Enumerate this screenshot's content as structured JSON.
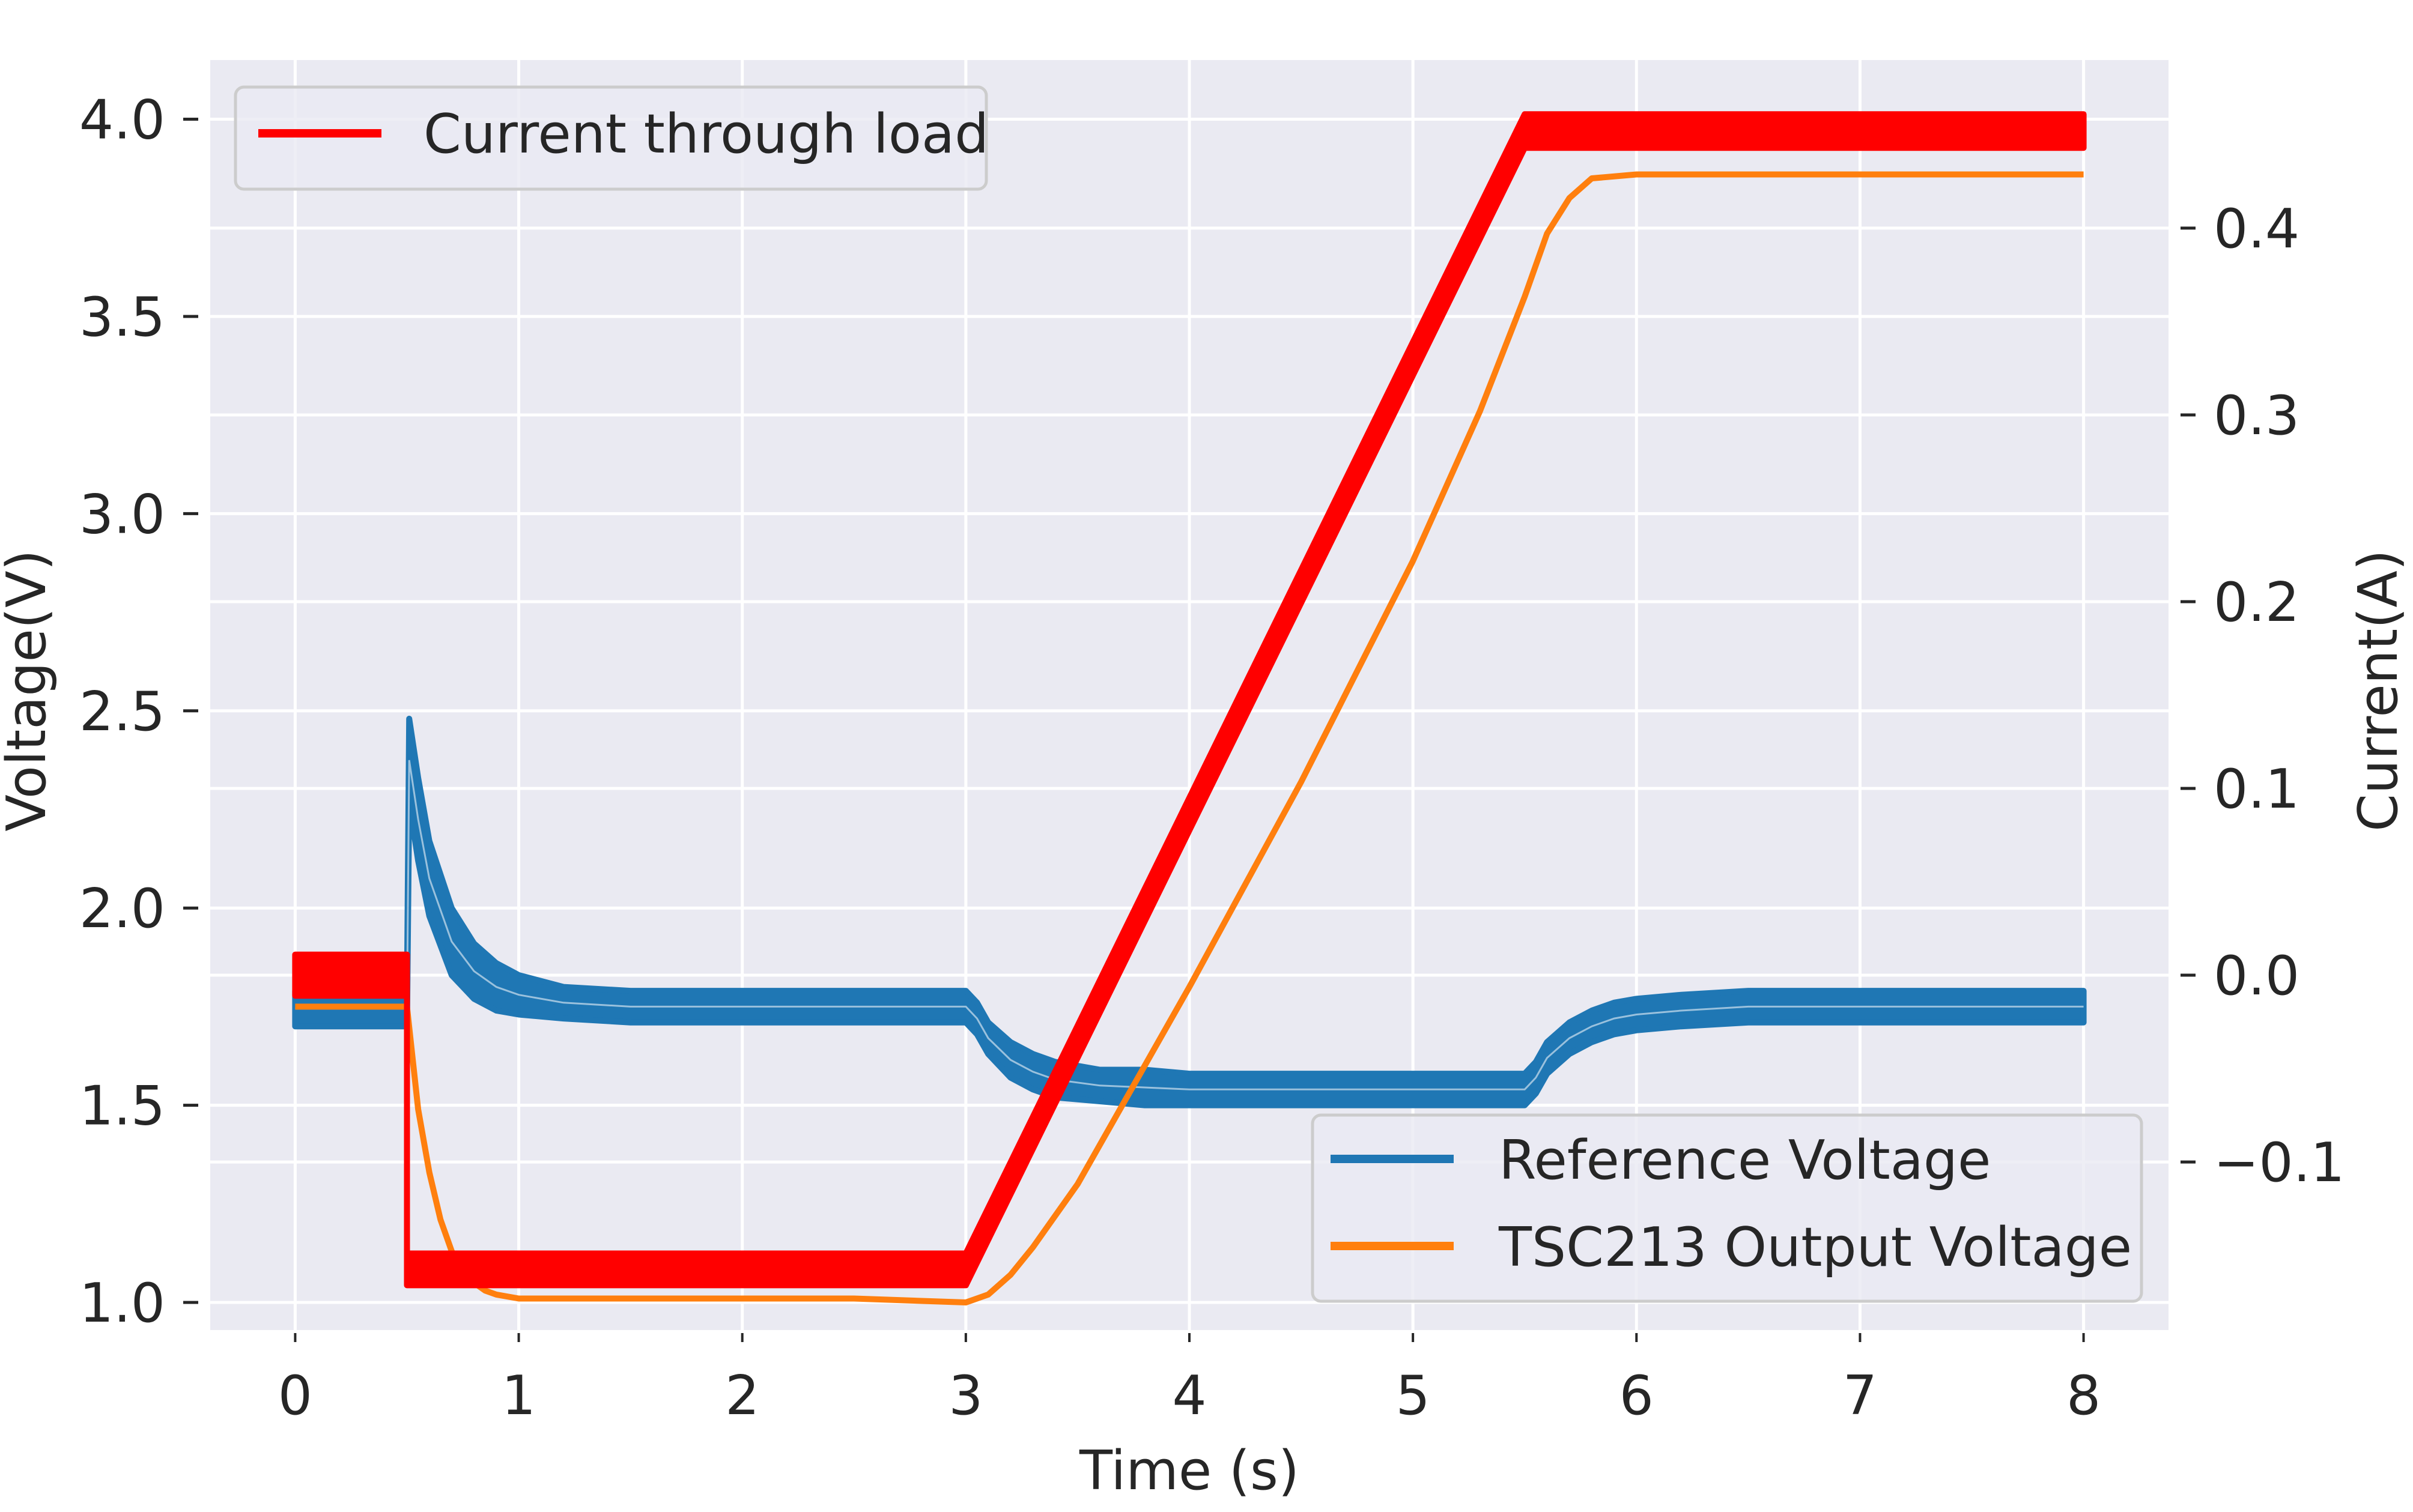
{
  "chart_data": {
    "type": "line",
    "title": "",
    "xlabel": "Time (s)",
    "ylabel_left": "Voltage(V)",
    "ylabel_right": "Current(A)",
    "xlim": [
      -0.38,
      8.38
    ],
    "ylim_left": [
      0.93,
      4.15
    ],
    "ylim_right": [
      -0.19,
      0.49
    ],
    "x_ticks": [
      0,
      1,
      2,
      3,
      4,
      5,
      6,
      7,
      8
    ],
    "x_tick_labels": [
      "0",
      "1",
      "2",
      "3",
      "4",
      "5",
      "6",
      "7",
      "8"
    ],
    "y_left_ticks": [
      1.0,
      1.5,
      2.0,
      2.5,
      3.0,
      3.5,
      4.0
    ],
    "y_left_tick_labels": [
      "1.0",
      "1.5",
      "2.0",
      "2.5",
      "3.0",
      "3.5",
      "4.0"
    ],
    "y_right_ticks": [
      -0.1,
      0.0,
      0.1,
      0.2,
      0.3,
      0.4
    ],
    "y_right_tick_labels": [
      "−0.1",
      "0.0",
      "0.1",
      "0.2",
      "0.3",
      "0.4"
    ],
    "grid": true,
    "series": [
      {
        "name": "Reference Voltage",
        "axis": "left",
        "color": "#1f77b4",
        "band": true,
        "x": [
          0,
          0.5,
          0.51,
          0.55,
          0.6,
          0.7,
          0.8,
          0.9,
          1.0,
          1.2,
          1.5,
          2.0,
          2.5,
          3.0,
          3.05,
          3.1,
          3.2,
          3.3,
          3.4,
          3.6,
          3.8,
          4.0,
          4.5,
          5.0,
          5.5,
          5.55,
          5.6,
          5.7,
          5.8,
          5.9,
          6.0,
          6.2,
          6.5,
          7.0,
          7.5,
          8.0
        ],
        "upper": [
          1.79,
          1.79,
          2.48,
          2.33,
          2.17,
          2.0,
          1.91,
          1.86,
          1.83,
          1.8,
          1.79,
          1.79,
          1.79,
          1.79,
          1.76,
          1.71,
          1.66,
          1.63,
          1.61,
          1.59,
          1.59,
          1.58,
          1.58,
          1.58,
          1.58,
          1.61,
          1.66,
          1.71,
          1.74,
          1.76,
          1.77,
          1.78,
          1.79,
          1.79,
          1.79,
          1.79
        ],
        "lower": [
          1.7,
          1.7,
          2.27,
          2.12,
          1.98,
          1.83,
          1.77,
          1.74,
          1.73,
          1.72,
          1.71,
          1.71,
          1.71,
          1.71,
          1.68,
          1.63,
          1.57,
          1.54,
          1.52,
          1.51,
          1.5,
          1.5,
          1.5,
          1.5,
          1.5,
          1.53,
          1.58,
          1.63,
          1.66,
          1.68,
          1.69,
          1.7,
          1.71,
          1.71,
          1.71,
          1.71
        ]
      },
      {
        "name": "TSC213 Output Voltage",
        "axis": "left",
        "color": "#ff7f0e",
        "x": [
          0,
          0.5,
          0.55,
          0.6,
          0.65,
          0.7,
          0.75,
          0.8,
          0.85,
          0.9,
          1.0,
          1.5,
          2.0,
          2.5,
          3.0,
          3.1,
          3.2,
          3.3,
          3.5,
          4.0,
          4.5,
          5.0,
          5.3,
          5.5,
          5.6,
          5.7,
          5.8,
          6.0,
          7.0,
          8.0
        ],
        "y": [
          1.75,
          1.75,
          1.49,
          1.33,
          1.21,
          1.13,
          1.08,
          1.05,
          1.03,
          1.02,
          1.01,
          1.01,
          1.01,
          1.01,
          1.0,
          1.02,
          1.07,
          1.14,
          1.3,
          1.8,
          2.32,
          2.88,
          3.26,
          3.55,
          3.71,
          3.8,
          3.85,
          3.86,
          3.86,
          3.86
        ]
      },
      {
        "name": "Current through load",
        "axis": "right",
        "color": "#ff0000",
        "band": true,
        "x": [
          0,
          0.5,
          0.5,
          3.0,
          5.5,
          8.0
        ],
        "upper": [
          0.011,
          0.011,
          -0.149,
          -0.149,
          0.461,
          0.461
        ],
        "lower": [
          -0.011,
          -0.011,
          -0.166,
          -0.166,
          0.443,
          0.443
        ]
      }
    ],
    "legends": [
      {
        "placement": "upper left",
        "entries": [
          "Current through load"
        ]
      },
      {
        "placement": "lower right",
        "entries": [
          "Reference Voltage",
          "TSC213 Output Voltage"
        ]
      }
    ]
  }
}
